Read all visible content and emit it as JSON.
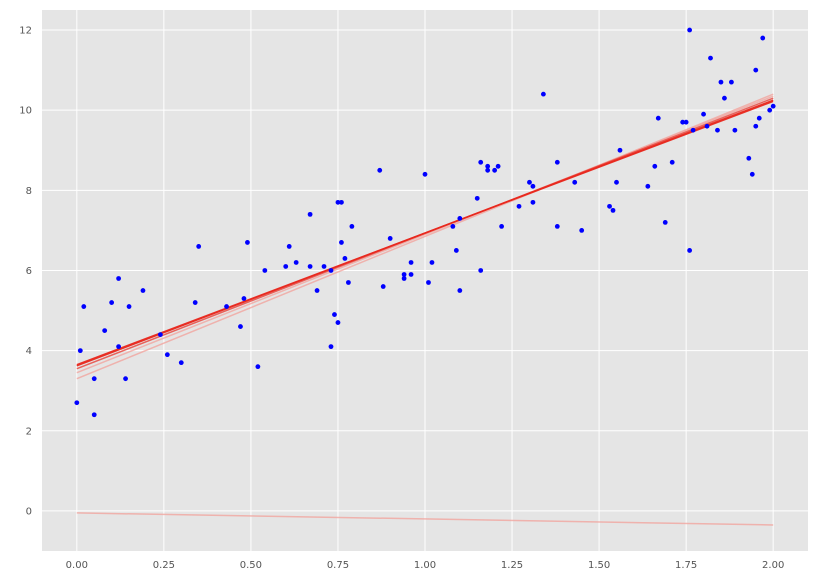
{
  "chart_data": {
    "type": "scatter",
    "title": "",
    "xlabel": "",
    "ylabel": "",
    "xlim": [
      -0.1,
      2.1
    ],
    "ylim": [
      -1,
      12.5
    ],
    "grid": true,
    "legend": "none",
    "x_ticks": [
      "0.00",
      "0.25",
      "0.50",
      "0.75",
      "1.00",
      "1.25",
      "1.50",
      "1.75",
      "2.00"
    ],
    "y_ticks": [
      "0",
      "2",
      "4",
      "6",
      "8",
      "10",
      "12"
    ],
    "colors": {
      "background": "#E5E5E5",
      "grid": "#FFFFFF",
      "points": "#0000FF",
      "fit_line": "#E8281E",
      "fit_line_faint": "#F2A09A"
    },
    "scatter": {
      "name": "",
      "x": [
        0.0,
        0.01,
        0.02,
        0.05,
        0.05,
        0.08,
        0.1,
        0.12,
        0.12,
        0.14,
        0.15,
        0.19,
        0.24,
        0.26,
        0.3,
        0.34,
        0.35,
        0.43,
        0.47,
        0.48,
        0.49,
        0.52,
        0.54,
        0.6,
        0.61,
        0.63,
        0.67,
        0.67,
        0.69,
        0.71,
        0.73,
        0.73,
        0.74,
        0.75,
        0.75,
        0.76,
        0.76,
        0.77,
        0.78,
        0.79,
        0.87,
        0.88,
        0.9,
        0.94,
        0.94,
        0.96,
        0.96,
        1.0,
        1.01,
        1.02,
        1.08,
        1.09,
        1.1,
        1.1,
        1.15,
        1.16,
        1.16,
        1.18,
        1.18,
        1.2,
        1.21,
        1.22,
        1.27,
        1.3,
        1.31,
        1.31,
        1.34,
        1.38,
        1.38,
        1.43,
        1.45,
        1.53,
        1.54,
        1.55,
        1.56,
        1.64,
        1.66,
        1.67,
        1.69,
        1.71,
        1.74,
        1.75,
        1.76,
        1.76,
        1.77,
        1.8,
        1.81,
        1.82,
        1.84,
        1.85,
        1.86,
        1.88,
        1.89,
        1.93,
        1.94,
        1.95,
        1.95,
        1.96,
        1.97,
        1.99,
        2.0
      ],
      "y": [
        2.7,
        4.0,
        5.1,
        2.4,
        3.3,
        4.5,
        5.2,
        4.1,
        5.8,
        3.3,
        5.1,
        5.5,
        4.4,
        3.9,
        3.7,
        5.2,
        6.6,
        5.1,
        4.6,
        5.3,
        6.7,
        3.6,
        6.0,
        6.1,
        6.6,
        6.2,
        6.1,
        7.4,
        5.5,
        6.1,
        4.1,
        6.0,
        4.9,
        4.7,
        7.7,
        7.7,
        6.7,
        6.3,
        5.7,
        7.1,
        8.5,
        5.6,
        6.8,
        5.8,
        5.9,
        6.2,
        5.9,
        8.4,
        5.7,
        6.2,
        7.1,
        6.5,
        7.3,
        5.5,
        7.8,
        8.7,
        6.0,
        8.6,
        8.5,
        8.5,
        8.6,
        7.1,
        7.6,
        8.2,
        7.7,
        8.1,
        10.4,
        8.7,
        7.1,
        8.2,
        7.0,
        7.6,
        7.5,
        8.2,
        9.0,
        8.1,
        8.6,
        9.8,
        7.2,
        8.7,
        9.7,
        9.7,
        12.0,
        6.5,
        9.5,
        9.9,
        9.6,
        11.3,
        9.5,
        10.7,
        10.3,
        10.7,
        9.5,
        8.8,
        8.4,
        11.0,
        9.6,
        9.8,
        11.8,
        10.0,
        10.1
      ]
    },
    "lines": [
      {
        "x": [
          0,
          2
        ],
        "y": [
          -0.05,
          -0.35
        ],
        "style": "faint"
      },
      {
        "x": [
          0,
          2
        ],
        "y": [
          3.3,
          10.4
        ],
        "style": "faint"
      },
      {
        "x": [
          0,
          2
        ],
        "y": [
          3.45,
          10.35
        ],
        "style": "faint"
      },
      {
        "x": [
          0,
          2
        ],
        "y": [
          3.55,
          10.3
        ],
        "style": "mid"
      },
      {
        "x": [
          0,
          2
        ],
        "y": [
          3.62,
          10.25
        ],
        "style": "strong"
      },
      {
        "x": [
          0,
          2
        ],
        "y": [
          3.65,
          10.22
        ],
        "style": "strong"
      }
    ]
  }
}
